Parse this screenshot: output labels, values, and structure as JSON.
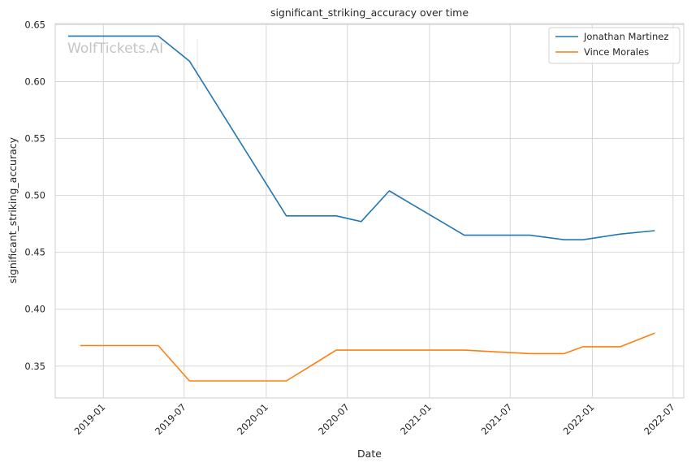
{
  "chart_data": {
    "type": "line",
    "title": "significant_striking_accuracy over time",
    "xlabel": "Date",
    "ylabel": "significant_striking_accuracy",
    "watermark": "WolfTickets.AI",
    "x_ticks": [
      "2019-01",
      "2019-07",
      "2020-01",
      "2020-07",
      "2021-01",
      "2021-07",
      "2022-01",
      "2022-07"
    ],
    "y_ticks": [
      "0.35",
      "0.40",
      "0.45",
      "0.50",
      "0.55",
      "0.60",
      "0.65"
    ],
    "ylim": [
      0.322,
      0.651
    ],
    "xlim": [
      "2018-09-15",
      "2022-07-25"
    ],
    "grid": true,
    "legend_position": "top-right",
    "series": [
      {
        "name": "Jonathan Martinez",
        "color": "#1f77b4",
        "points": [
          {
            "x": "2018-10-14",
            "y": 0.64
          },
          {
            "x": "2019-05-04",
            "y": 0.64
          },
          {
            "x": "2019-07-13",
            "y": 0.618
          },
          {
            "x": "2020-02-15",
            "y": 0.482
          },
          {
            "x": "2020-06-06",
            "y": 0.482
          },
          {
            "x": "2020-08-01",
            "y": 0.477
          },
          {
            "x": "2020-10-03",
            "y": 0.504
          },
          {
            "x": "2021-03-20",
            "y": 0.465
          },
          {
            "x": "2021-08-14",
            "y": 0.465
          },
          {
            "x": "2021-10-30",
            "y": 0.461
          },
          {
            "x": "2021-12-11",
            "y": 0.461
          },
          {
            "x": "2022-03-05",
            "y": 0.466
          },
          {
            "x": "2022-05-21",
            "y": 0.469
          }
        ]
      },
      {
        "name": "Vince Morales",
        "color": "#ff7f0e",
        "points": [
          {
            "x": "2018-11-10",
            "y": 0.368
          },
          {
            "x": "2019-05-04",
            "y": 0.368
          },
          {
            "x": "2019-07-13",
            "y": 0.337
          },
          {
            "x": "2020-02-15",
            "y": 0.337
          },
          {
            "x": "2020-06-06",
            "y": 0.364
          },
          {
            "x": "2021-03-20",
            "y": 0.364
          },
          {
            "x": "2021-08-14",
            "y": 0.361
          },
          {
            "x": "2021-10-30",
            "y": 0.361
          },
          {
            "x": "2021-12-11",
            "y": 0.367
          },
          {
            "x": "2022-03-05",
            "y": 0.367
          },
          {
            "x": "2022-05-21",
            "y": 0.379
          }
        ]
      }
    ]
  }
}
